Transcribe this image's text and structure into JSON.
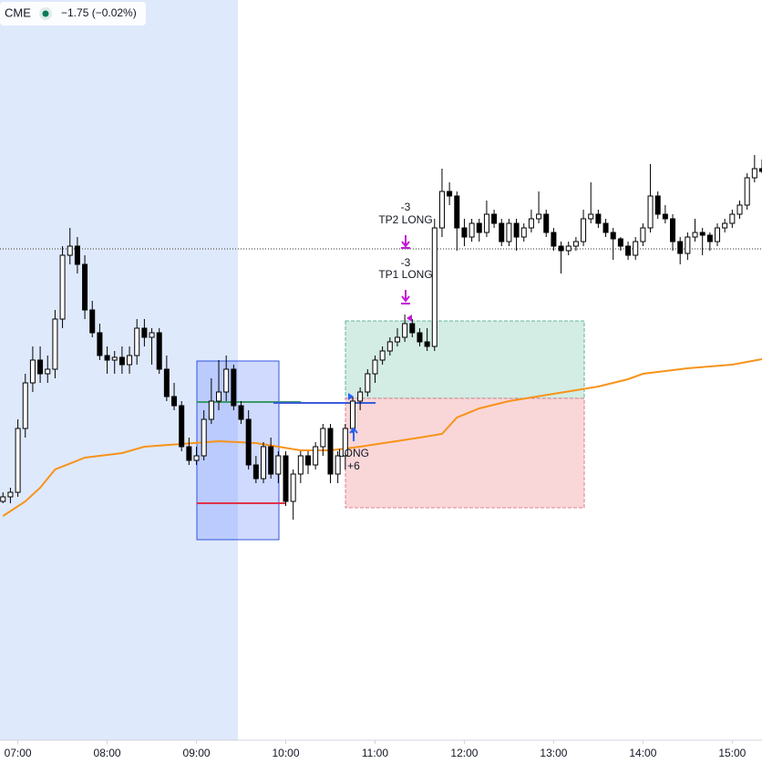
{
  "header": {
    "symbol": "CME",
    "change": "−1.75 (−0.02%)"
  },
  "chart_data": {
    "type": "candlestick",
    "up_color": "#ffffff",
    "down_color": "#000000",
    "wick_color": "#000000",
    "xlim": [
      "06:48",
      "15:20"
    ],
    "ylim": [
      5005,
      5086
    ],
    "xticks": [
      "07:00",
      "08:00",
      "09:00",
      "10:00",
      "11:00",
      "12:00",
      "13:00",
      "14:00",
      "15:00"
    ],
    "x": [
      "06:50",
      "06:55",
      "07:00",
      "07:05",
      "07:10",
      "07:15",
      "07:20",
      "07:25",
      "07:30",
      "07:35",
      "07:40",
      "07:45",
      "07:50",
      "07:55",
      "08:00",
      "08:05",
      "08:10",
      "08:15",
      "08:20",
      "08:25",
      "08:30",
      "08:35",
      "08:40",
      "08:45",
      "08:50",
      "08:55",
      "09:00",
      "09:05",
      "09:10",
      "09:15",
      "09:20",
      "09:25",
      "09:30",
      "09:35",
      "09:40",
      "09:45",
      "09:50",
      "09:55",
      "10:00",
      "10:05",
      "10:10",
      "10:15",
      "10:20",
      "10:25",
      "10:30",
      "10:35",
      "10:40",
      "10:45",
      "10:50",
      "10:55",
      "11:00",
      "11:05",
      "11:10",
      "11:15",
      "11:20",
      "11:25",
      "11:30",
      "11:35",
      "11:40",
      "11:45",
      "11:50",
      "11:55",
      "12:00",
      "12:05",
      "12:10",
      "12:15",
      "12:20",
      "12:25",
      "12:30",
      "12:35",
      "12:40",
      "12:45",
      "12:50",
      "12:55",
      "13:00",
      "13:05",
      "13:10",
      "13:15",
      "13:20",
      "13:25",
      "13:30",
      "13:35",
      "13:40",
      "13:45",
      "13:50",
      "13:55",
      "14:00",
      "14:05",
      "14:10",
      "14:15",
      "14:20",
      "14:25",
      "14:30",
      "14:35",
      "14:40",
      "14:45",
      "14:50",
      "14:55",
      "15:00",
      "15:05",
      "15:10",
      "15:15",
      "15:20"
    ],
    "ohlc": [
      [
        5031,
        5032,
        5030.8,
        5031.5
      ],
      [
        5031.5,
        5032.5,
        5030.8,
        5032
      ],
      [
        5032,
        5040,
        5031.5,
        5039
      ],
      [
        5039,
        5045,
        5038,
        5044
      ],
      [
        5044,
        5048,
        5043,
        5046.5
      ],
      [
        5046.5,
        5048,
        5044,
        5045
      ],
      [
        5045,
        5047,
        5044,
        5045.5
      ],
      [
        5045.5,
        5052,
        5044.5,
        5051
      ],
      [
        5051,
        5059,
        5050,
        5058
      ],
      [
        5058,
        5061,
        5057,
        5059
      ],
      [
        5059,
        5060,
        5056,
        5057
      ],
      [
        5057,
        5058,
        5051,
        5052
      ],
      [
        5052,
        5053,
        5049,
        5049.5
      ],
      [
        5049.5,
        5050.5,
        5046.5,
        5047
      ],
      [
        5047,
        5048,
        5045,
        5046.5
      ],
      [
        5046.5,
        5047.5,
        5045,
        5046.8
      ],
      [
        5046.8,
        5048,
        5045,
        5046
      ],
      [
        5046,
        5048,
        5045,
        5047
      ],
      [
        5047,
        5051,
        5046,
        5050
      ],
      [
        5050,
        5051,
        5048,
        5049
      ],
      [
        5049,
        5050,
        5046,
        5049.5
      ],
      [
        5049.5,
        5050,
        5045,
        5045.5
      ],
      [
        5045.5,
        5047,
        5042,
        5042.5
      ],
      [
        5042.5,
        5044,
        5041,
        5041.5
      ],
      [
        5041.5,
        5042,
        5036.5,
        5037
      ],
      [
        5037,
        5038,
        5035,
        5035.5
      ],
      [
        5035.5,
        5037,
        5035,
        5036
      ],
      [
        5036,
        5041,
        5035.5,
        5040
      ],
      [
        5040,
        5044.5,
        5039.5,
        5042
      ],
      [
        5042,
        5046.5,
        5041,
        5043
      ],
      [
        5043,
        5047,
        5042,
        5045.5
      ],
      [
        5045.5,
        5046,
        5041,
        5041.5
      ],
      [
        5041.5,
        5042,
        5039.5,
        5040
      ],
      [
        5040,
        5041,
        5034.5,
        5035
      ],
      [
        5035,
        5036,
        5033,
        5033.5
      ],
      [
        5033.5,
        5037.5,
        5033,
        5037
      ],
      [
        5037,
        5038,
        5033.5,
        5034
      ],
      [
        5034,
        5036.5,
        5033,
        5036
      ],
      [
        5036,
        5036.5,
        5030.5,
        5031
      ],
      [
        5031,
        5034.5,
        5029,
        5034
      ],
      [
        5034,
        5036.5,
        5033,
        5036
      ],
      [
        5036,
        5036.5,
        5034,
        5035
      ],
      [
        5035,
        5037.5,
        5034.5,
        5037
      ],
      [
        5037,
        5039.5,
        5036,
        5039
      ],
      [
        5039,
        5039.5,
        5033,
        5034
      ],
      [
        5034,
        5036.5,
        5033,
        5036
      ],
      [
        5036,
        5039.5,
        5034.5,
        5039
      ],
      [
        5039,
        5042.5,
        5038.5,
        5042
      ],
      [
        5042,
        5043.5,
        5041,
        5043
      ],
      [
        5043,
        5045.5,
        5042.5,
        5045
      ],
      [
        5045,
        5047,
        5044,
        5046.5
      ],
      [
        5046.5,
        5048,
        5046,
        5047.5
      ],
      [
        5047.5,
        5049,
        5047,
        5048.5
      ],
      [
        5048.5,
        5050,
        5048,
        5049
      ],
      [
        5049,
        5051.5,
        5048.5,
        5050.5
      ],
      [
        5050.5,
        5051,
        5049,
        5049.5
      ],
      [
        5049.5,
        5050,
        5048,
        5048.5
      ],
      [
        5048.5,
        5050,
        5047.5,
        5048
      ],
      [
        5048,
        5062,
        5047.5,
        5061
      ],
      [
        5061,
        5067.5,
        5060,
        5065
      ],
      [
        5065,
        5066,
        5063.5,
        5064.5
      ],
      [
        5064.5,
        5065,
        5058.5,
        5061
      ],
      [
        5061,
        5062,
        5059,
        5060
      ],
      [
        5060,
        5062,
        5059.5,
        5061.5
      ],
      [
        5061.5,
        5062,
        5059.5,
        5060.5
      ],
      [
        5060.5,
        5064,
        5060,
        5062.5
      ],
      [
        5062.5,
        5063,
        5061,
        5061.5
      ],
      [
        5061.5,
        5062,
        5059,
        5059.5
      ],
      [
        5059.5,
        5062,
        5059,
        5061.5
      ],
      [
        5061.5,
        5062,
        5058.5,
        5060
      ],
      [
        5060,
        5061.5,
        5059.5,
        5061
      ],
      [
        5061,
        5063,
        5060.5,
        5062
      ],
      [
        5062,
        5065,
        5061.5,
        5062.5
      ],
      [
        5062.5,
        5063,
        5060,
        5060.5
      ],
      [
        5060.5,
        5061,
        5058.5,
        5059
      ],
      [
        5059,
        5059.5,
        5056,
        5058.5
      ],
      [
        5058.5,
        5059.5,
        5058,
        5059
      ],
      [
        5059,
        5060,
        5058.5,
        5059.5
      ],
      [
        5059.5,
        5063,
        5059,
        5062
      ],
      [
        5062,
        5066,
        5061.5,
        5062.5
      ],
      [
        5062.5,
        5063,
        5061,
        5061.5
      ],
      [
        5061.5,
        5062,
        5060,
        5060.5
      ],
      [
        5060.5,
        5061,
        5057.5,
        5059.8
      ],
      [
        5059.8,
        5060,
        5058.5,
        5059
      ],
      [
        5059,
        5059.5,
        5057.5,
        5058
      ],
      [
        5058,
        5060,
        5057.5,
        5059.5
      ],
      [
        5059.5,
        5061.5,
        5059,
        5061
      ],
      [
        5061,
        5068,
        5060.5,
        5064.5
      ],
      [
        5064.5,
        5065,
        5062,
        5062.5
      ],
      [
        5062.5,
        5063.5,
        5061.5,
        5062
      ],
      [
        5062,
        5062.5,
        5058.5,
        5059.5
      ],
      [
        5059.5,
        5060,
        5057,
        5058.2
      ],
      [
        5058.2,
        5060.5,
        5057.5,
        5060
      ],
      [
        5060,
        5062,
        5059.5,
        5060.5
      ],
      [
        5060.5,
        5061,
        5058,
        5060.2
      ],
      [
        5060.2,
        5060.5,
        5058.5,
        5059.5
      ],
      [
        5059.5,
        5061.5,
        5059,
        5061
      ],
      [
        5061,
        5062,
        5060.5,
        5061.5
      ],
      [
        5061.5,
        5063,
        5061,
        5062.5
      ],
      [
        5062.5,
        5064,
        5062,
        5063.5
      ],
      [
        5063.5,
        5067,
        5063,
        5066.5
      ],
      [
        5066.5,
        5069,
        5066,
        5067.5
      ],
      [
        5067.5,
        5068.5,
        5067,
        5067.2
      ]
    ],
    "indicator": {
      "color": "#f7931a",
      "x": [
        "06:50",
        "07:05",
        "07:15",
        "07:25",
        "07:45",
        "08:10",
        "08:25",
        "08:50",
        "09:15",
        "09:40",
        "09:55",
        "10:10",
        "10:30",
        "10:50",
        "11:10",
        "11:30",
        "11:45",
        "11:55",
        "12:10",
        "12:30",
        "13:00",
        "13:30",
        "13:50",
        "14:00",
        "14:30",
        "15:00",
        "15:20"
      ],
      "values": [
        5029.4,
        5031,
        5032.5,
        5034.5,
        5035.8,
        5036.3,
        5037,
        5037.3,
        5037.6,
        5037.4,
        5037,
        5036.6,
        5036.6,
        5037,
        5037.5,
        5038,
        5038.4,
        5040.2,
        5041.2,
        5042,
        5042.8,
        5043.6,
        5044.4,
        5045,
        5045.6,
        5046,
        5046.6
      ]
    },
    "annotations": {
      "tp2_qty": "-3",
      "tp2": "TP2 LONG",
      "tp1_qty": "-3",
      "tp1": "TP1 LONG",
      "entry": "LONG",
      "entry_qty": "+6"
    }
  }
}
